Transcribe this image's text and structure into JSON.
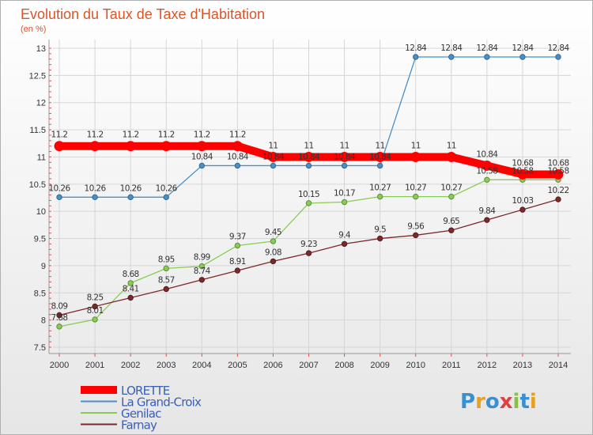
{
  "chart_data": {
    "type": "line",
    "title": "Evolution du Taux de Taxe d'Habitation",
    "subtitle": "(en %)",
    "x": [
      "2000",
      "2001",
      "2002",
      "2003",
      "2004",
      "2005",
      "2006",
      "2007",
      "2008",
      "2009",
      "2010",
      "2011",
      "2012",
      "2013",
      "2014"
    ],
    "ylim": [
      7.5,
      13
    ],
    "yticks": [
      "7.5",
      "8",
      "8.5",
      "9",
      "9.5",
      "10",
      "10.5",
      "11",
      "11.5",
      "12",
      "12.5",
      "13"
    ],
    "grid": true,
    "legend_position": "bottom-left",
    "series": [
      {
        "name": "LORETTE",
        "color": "#ff0000",
        "values": [
          11.2,
          11.2,
          11.2,
          11.2,
          11.2,
          11.2,
          11,
          11,
          11,
          11,
          11,
          11,
          10.84,
          10.68,
          10.68
        ],
        "labels": [
          "11.2",
          "11.2",
          "11.2",
          "11.2",
          "11.2",
          "11.2",
          "11",
          "11",
          "11",
          "11",
          "11",
          "11",
          "10.84",
          "10.68",
          "10.68"
        ]
      },
      {
        "name": "La Grand-Croix",
        "color": "#4a90c8",
        "values": [
          10.26,
          10.26,
          10.26,
          10.26,
          10.84,
          10.84,
          10.84,
          10.84,
          10.84,
          10.84,
          12.84,
          12.84,
          12.84,
          12.84,
          12.84
        ],
        "labels": [
          "10.26",
          "10.26",
          "10.26",
          "10.26",
          "10.84",
          "10.84",
          "10.84",
          "10.84",
          "10.84",
          "10.84",
          "12.84",
          "12.84",
          "12.84",
          "12.84",
          "12.84"
        ]
      },
      {
        "name": "Genilac",
        "color": "#88cc55",
        "values": [
          7.88,
          8.01,
          8.68,
          8.95,
          8.99,
          9.37,
          9.45,
          10.15,
          10.17,
          10.27,
          10.27,
          10.27,
          10.58,
          10.58,
          10.58
        ],
        "labels": [
          "7.88",
          "8.01",
          "8.68",
          "8.95",
          "8.99",
          "9.37",
          "9.45",
          "10.15",
          "10.17",
          "10.27",
          "10.27",
          "10.27",
          "10.58",
          "10.58",
          "10.58"
        ]
      },
      {
        "name": "Farnay",
        "color": "#7a2a2a",
        "values": [
          8.09,
          8.25,
          8.41,
          8.57,
          8.74,
          8.91,
          9.08,
          9.23,
          9.4,
          9.5,
          9.56,
          9.65,
          9.84,
          10.03,
          10.22
        ],
        "labels": [
          "8.09",
          "8.25",
          "8.41",
          "8.57",
          "8.74",
          "8.91",
          "9.08",
          "9.23",
          "9.4",
          "9.5",
          "9.56",
          "9.65",
          "9.84",
          "10.03",
          "10.22"
        ]
      }
    ]
  },
  "branding": {
    "logo_text": "Proxiti"
  }
}
